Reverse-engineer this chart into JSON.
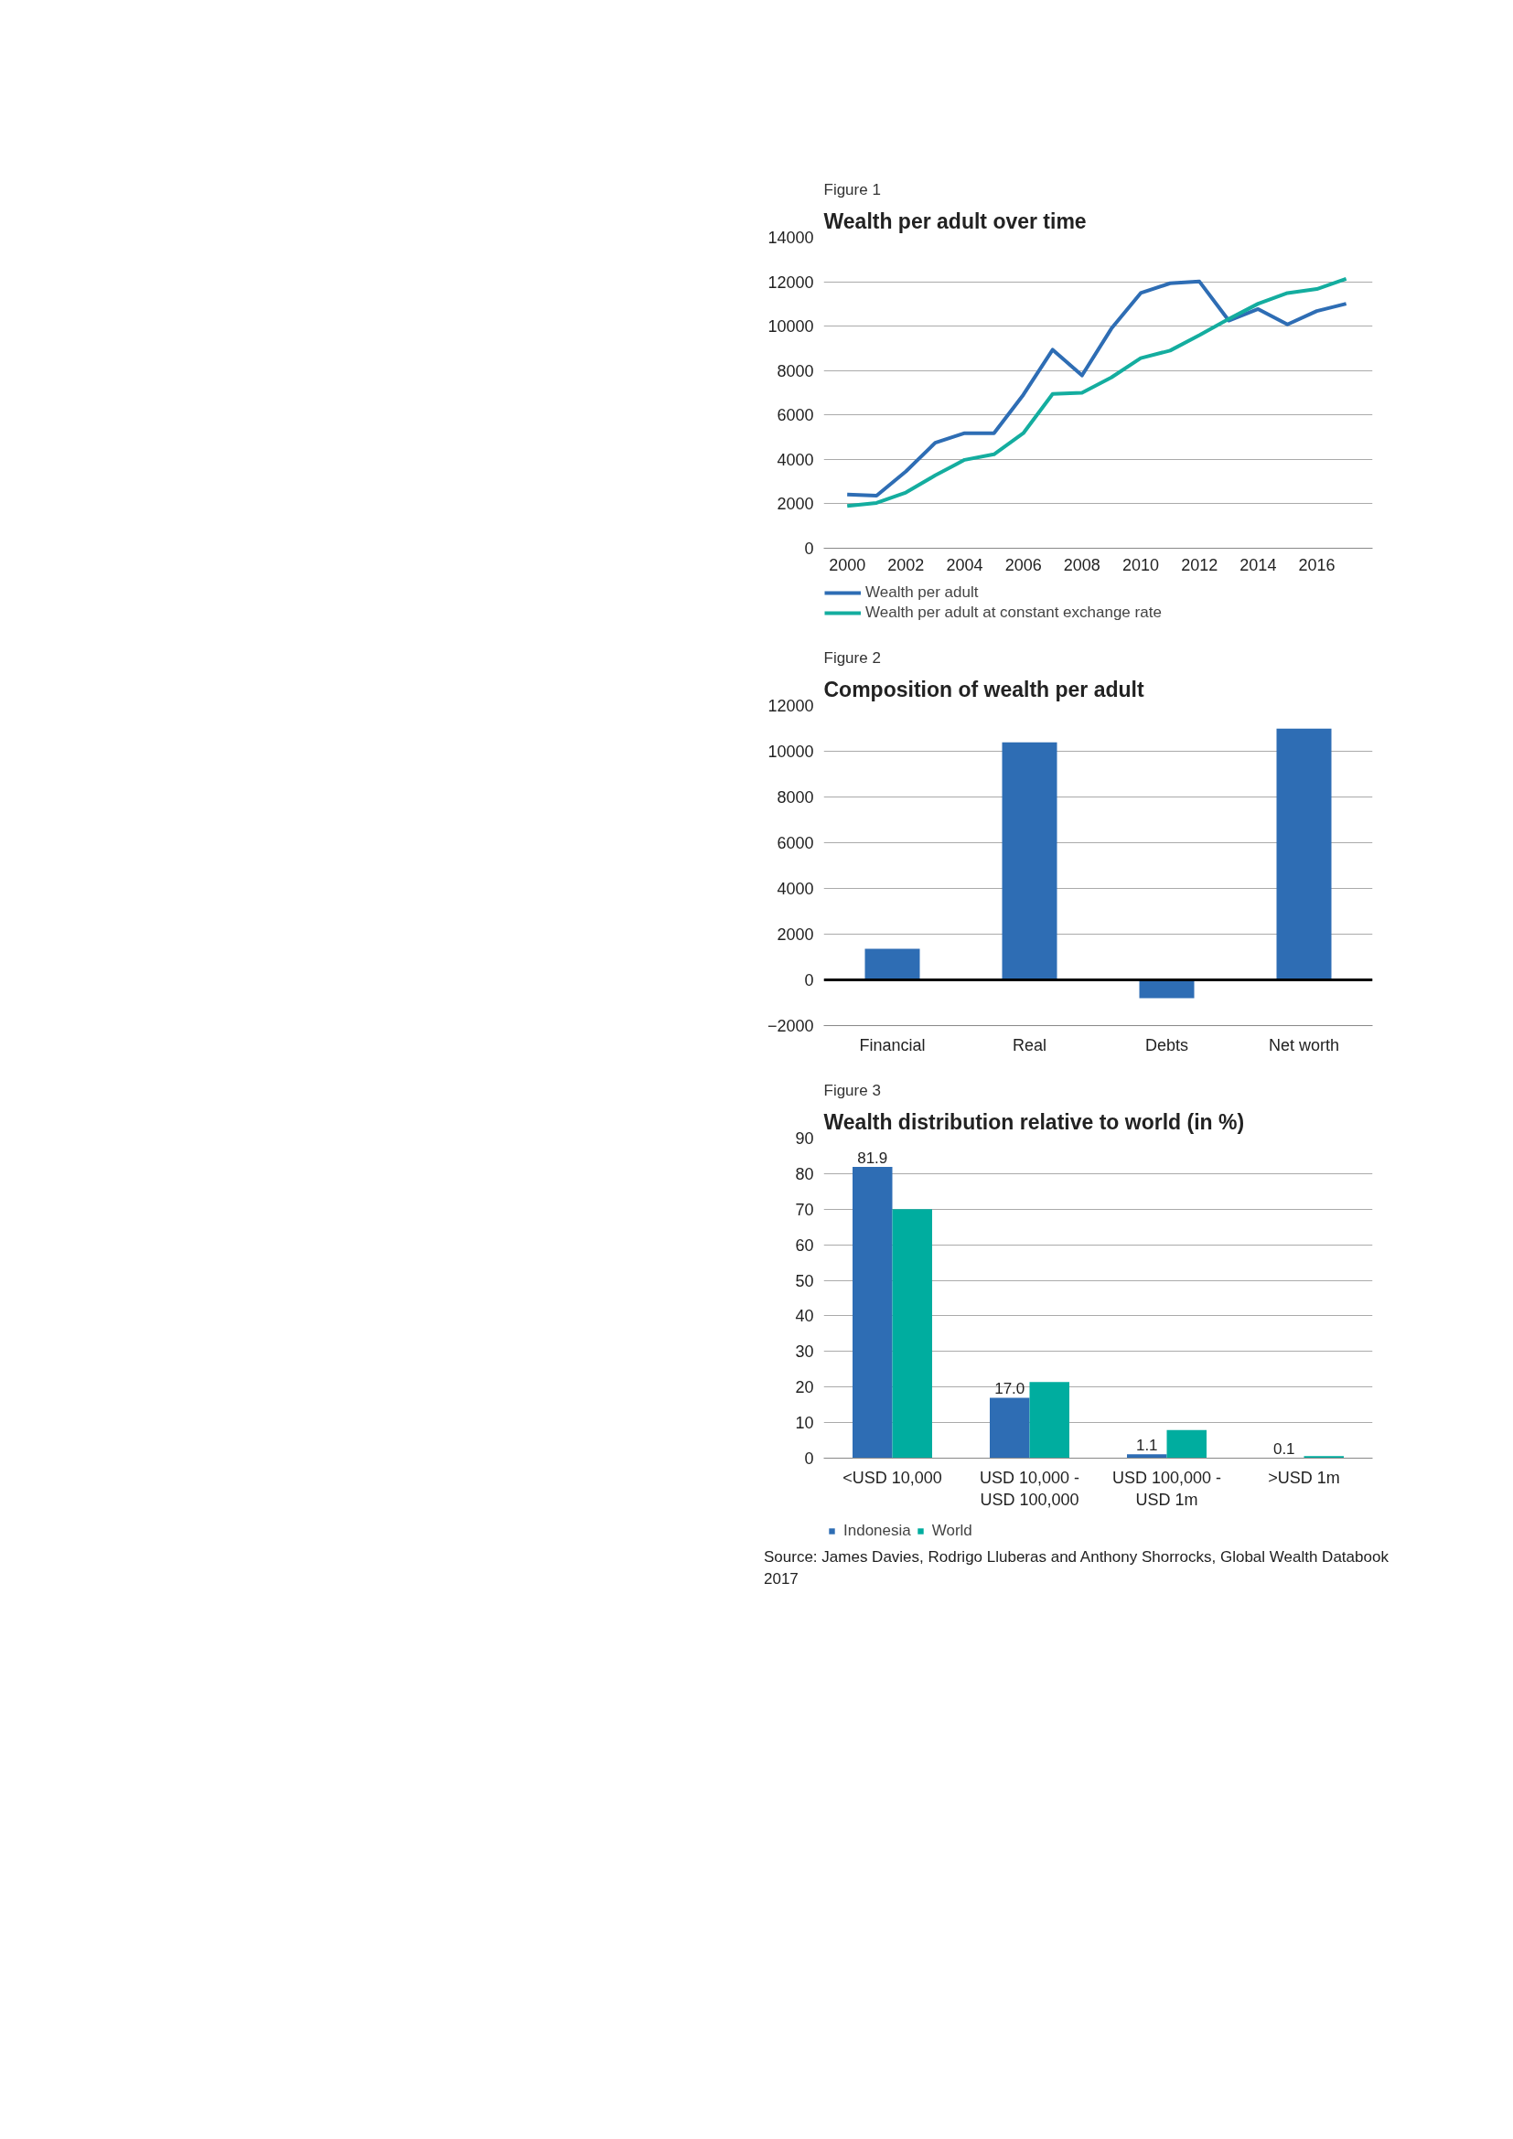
{
  "chart_data": [
    {
      "type": "line",
      "subtitle": "Figure 1",
      "title": "Wealth per adult over time",
      "x": [
        2000,
        2001,
        2002,
        2003,
        2004,
        2005,
        2006,
        2007,
        2008,
        2009,
        2010,
        2011,
        2012,
        2013,
        2014,
        2015,
        2016,
        2017
      ],
      "xlim": [
        1999.2,
        2017.9
      ],
      "xticks": [
        2000,
        2002,
        2004,
        2006,
        2008,
        2010,
        2012,
        2014,
        2016
      ],
      "ylim": [
        0,
        14000
      ],
      "yticks": [
        0,
        2000,
        4000,
        6000,
        8000,
        10000,
        12000,
        14000
      ],
      "grid": "y",
      "legend": "bottom",
      "line_style": "solid",
      "series": [
        {
          "name": "Wealth per adult",
          "color": "#2e6db4",
          "values": [
            2420,
            2370,
            3460,
            4750,
            5180,
            5180,
            6910,
            8940,
            7780,
            9890,
            11490,
            11930,
            12010,
            10250,
            10770,
            10080,
            10680,
            11010
          ]
        },
        {
          "name": "Wealth per adult at constant exchange rate",
          "color": "#14ad9f",
          "values": [
            1900,
            2040,
            2510,
            3280,
            3980,
            4230,
            5180,
            6950,
            7000,
            7690,
            8560,
            8900,
            9590,
            10320,
            11010,
            11490,
            11670,
            12130
          ]
        }
      ]
    },
    {
      "type": "bar",
      "subtitle": "Figure 2",
      "title": "Composition of wealth per adult",
      "categories": [
        "Financial",
        "Real",
        "Debts",
        "Net worth"
      ],
      "ylim": [
        -2000,
        12000
      ],
      "yticks": [
        -2000,
        0,
        2000,
        4000,
        6000,
        8000,
        10000,
        12000
      ],
      "grid": "y",
      "series": [
        {
          "color": "#2e6db4",
          "values": [
            1360,
            10390,
            -800,
            10990
          ]
        }
      ],
      "ref_lines": [
        {
          "axis": "y",
          "value": 0,
          "color": "#000000"
        }
      ]
    },
    {
      "type": "bar",
      "subtitle": "Figure 3",
      "title": "Wealth distribution relative to world (in %)",
      "categories": [
        "<USD 10,000",
        "USD 10,000 -\nUSD 100,000",
        "USD 100,000 -\nUSD 1m",
        ">USD 1m"
      ],
      "ylim": [
        0,
        90
      ],
      "yticks": [
        0,
        10,
        20,
        30,
        40,
        50,
        60,
        70,
        80,
        90
      ],
      "grid": "y",
      "legend": "bottom",
      "series": [
        {
          "name": "Indonesia",
          "color": "#2e6db4",
          "values": [
            81.9,
            17.0,
            1.1,
            0.1
          ],
          "value_labels": [
            "81.9",
            "17.0",
            "1.1",
            "0.1"
          ]
        },
        {
          "name": "World",
          "color": "#00ad9f",
          "values": [
            70,
            21.4,
            7.9,
            0.6
          ]
        }
      ],
      "annotations": [
        "Source: James Davies, Rodrigo Lluberas and Anthony Shorrocks, Global Wealth Databook 2017"
      ]
    }
  ]
}
